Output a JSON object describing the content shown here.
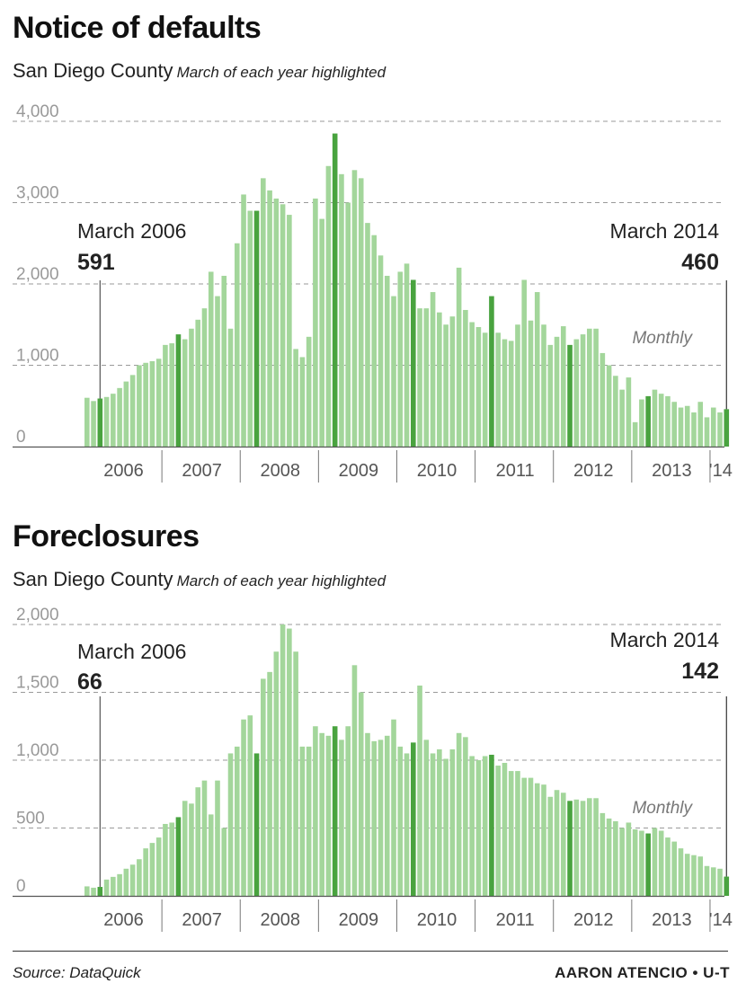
{
  "chart_data": [
    {
      "type": "bar",
      "title": "Notice of defaults",
      "subtitle": "San Diego County",
      "note": "March of each year highlighted",
      "series_label": "Monthly",
      "ylim": [
        0,
        4000
      ],
      "yticks": [
        0,
        1000,
        2000,
        3000,
        4000
      ],
      "ytick_labels": [
        "0",
        "1,000",
        "2,000",
        "3,000",
        "4,000"
      ],
      "year_labels": [
        "2006",
        "2007",
        "2008",
        "2009",
        "2010",
        "2011",
        "2012",
        "2013",
        "'14"
      ],
      "months": [
        "2006-01",
        "2006-02",
        "2006-03",
        "2006-04",
        "2006-05",
        "2006-06",
        "2006-07",
        "2006-08",
        "2006-09",
        "2006-10",
        "2006-11",
        "2006-12",
        "2007-01",
        "2007-02",
        "2007-03",
        "2007-04",
        "2007-05",
        "2007-06",
        "2007-07",
        "2007-08",
        "2007-09",
        "2007-10",
        "2007-11",
        "2007-12",
        "2008-01",
        "2008-02",
        "2008-03",
        "2008-04",
        "2008-05",
        "2008-06",
        "2008-07",
        "2008-08",
        "2008-09",
        "2008-10",
        "2008-11",
        "2008-12",
        "2009-01",
        "2009-02",
        "2009-03",
        "2009-04",
        "2009-05",
        "2009-06",
        "2009-07",
        "2009-08",
        "2009-09",
        "2009-10",
        "2009-11",
        "2009-12",
        "2010-01",
        "2010-02",
        "2010-03",
        "2010-04",
        "2010-05",
        "2010-06",
        "2010-07",
        "2010-08",
        "2010-09",
        "2010-10",
        "2010-11",
        "2010-12",
        "2011-01",
        "2011-02",
        "2011-03",
        "2011-04",
        "2011-05",
        "2011-06",
        "2011-07",
        "2011-08",
        "2011-09",
        "2011-10",
        "2011-11",
        "2011-12",
        "2012-01",
        "2012-02",
        "2012-03",
        "2012-04",
        "2012-05",
        "2012-06",
        "2012-07",
        "2012-08",
        "2012-09",
        "2012-10",
        "2012-11",
        "2012-12",
        "2013-01",
        "2013-02",
        "2013-03",
        "2013-04",
        "2013-05",
        "2013-06",
        "2013-07",
        "2013-08",
        "2013-09",
        "2013-10",
        "2013-11",
        "2013-12",
        "2014-01",
        "2014-02",
        "2014-03"
      ],
      "values": [
        600,
        560,
        591,
        610,
        650,
        720,
        800,
        880,
        1000,
        1030,
        1050,
        1080,
        1250,
        1270,
        1380,
        1320,
        1450,
        1560,
        1700,
        2150,
        1850,
        2100,
        1450,
        2500,
        3100,
        2900,
        2900,
        3300,
        3150,
        3050,
        2980,
        2850,
        1200,
        1100,
        1350,
        3050,
        2800,
        3450,
        3850,
        3350,
        3000,
        3400,
        3300,
        2750,
        2600,
        2350,
        2100,
        1850,
        2150,
        2250,
        2050,
        1700,
        1700,
        1900,
        1650,
        1500,
        1600,
        2200,
        1680,
        1530,
        1470,
        1400,
        1850,
        1400,
        1320,
        1300,
        1500,
        2050,
        1550,
        1900,
        1500,
        1250,
        1350,
        1480,
        1250,
        1320,
        1380,
        1450,
        1450,
        1150,
        1000,
        870,
        700,
        850,
        300,
        580,
        620,
        700,
        650,
        620,
        550,
        480,
        500,
        420,
        550,
        360,
        480,
        420,
        460
      ],
      "highlight_months": [
        "2006-03",
        "2007-03",
        "2008-03",
        "2009-03",
        "2010-03",
        "2011-03",
        "2012-03",
        "2013-03",
        "2014-03"
      ],
      "annotations": [
        {
          "label": "March 2006",
          "value": "591"
        },
        {
          "label": "March 2014",
          "value": "460"
        }
      ],
      "colors": {
        "bar": "#a3d69b",
        "highlight": "#49a33f",
        "grid": "#9a9a9a"
      }
    },
    {
      "type": "bar",
      "title": "Foreclosures",
      "subtitle": "San Diego County",
      "note": "March of each year highlighted",
      "series_label": "Monthly",
      "ylim": [
        0,
        2000
      ],
      "yticks": [
        0,
        500,
        1000,
        1500,
        2000
      ],
      "ytick_labels": [
        "0",
        "500",
        "1,000",
        "1,500",
        "2,000"
      ],
      "year_labels": [
        "2006",
        "2007",
        "2008",
        "2009",
        "2010",
        "2011",
        "2012",
        "2013",
        "'14"
      ],
      "months": [
        "2006-01",
        "2006-02",
        "2006-03",
        "2006-04",
        "2006-05",
        "2006-06",
        "2006-07",
        "2006-08",
        "2006-09",
        "2006-10",
        "2006-11",
        "2006-12",
        "2007-01",
        "2007-02",
        "2007-03",
        "2007-04",
        "2007-05",
        "2007-06",
        "2007-07",
        "2007-08",
        "2007-09",
        "2007-10",
        "2007-11",
        "2007-12",
        "2008-01",
        "2008-02",
        "2008-03",
        "2008-04",
        "2008-05",
        "2008-06",
        "2008-07",
        "2008-08",
        "2008-09",
        "2008-10",
        "2008-11",
        "2008-12",
        "2009-01",
        "2009-02",
        "2009-03",
        "2009-04",
        "2009-05",
        "2009-06",
        "2009-07",
        "2009-08",
        "2009-09",
        "2009-10",
        "2009-11",
        "2009-12",
        "2010-01",
        "2010-02",
        "2010-03",
        "2010-04",
        "2010-05",
        "2010-06",
        "2010-07",
        "2010-08",
        "2010-09",
        "2010-10",
        "2010-11",
        "2010-12",
        "2011-01",
        "2011-02",
        "2011-03",
        "2011-04",
        "2011-05",
        "2011-06",
        "2011-07",
        "2011-08",
        "2011-09",
        "2011-10",
        "2011-11",
        "2011-12",
        "2012-01",
        "2012-02",
        "2012-03",
        "2012-04",
        "2012-05",
        "2012-06",
        "2012-07",
        "2012-08",
        "2012-09",
        "2012-10",
        "2012-11",
        "2012-12",
        "2013-01",
        "2013-02",
        "2013-03",
        "2013-04",
        "2013-05",
        "2013-06",
        "2013-07",
        "2013-08",
        "2013-09",
        "2013-10",
        "2013-11",
        "2013-12",
        "2014-01",
        "2014-02",
        "2014-03"
      ],
      "values": [
        70,
        60,
        66,
        120,
        140,
        160,
        200,
        230,
        270,
        350,
        390,
        430,
        530,
        540,
        580,
        700,
        680,
        800,
        850,
        600,
        850,
        500,
        1050,
        1100,
        1300,
        1330,
        1050,
        1600,
        1650,
        1800,
        2000,
        1970,
        1800,
        1100,
        1100,
        1250,
        1200,
        1180,
        1250,
        1150,
        1250,
        1700,
        1500,
        1200,
        1140,
        1150,
        1180,
        1300,
        1100,
        1050,
        1130,
        1550,
        1150,
        1050,
        1080,
        1010,
        1080,
        1200,
        1170,
        1030,
        1000,
        1030,
        1040,
        960,
        980,
        920,
        920,
        870,
        870,
        830,
        820,
        730,
        780,
        760,
        700,
        710,
        700,
        720,
        720,
        610,
        570,
        550,
        500,
        540,
        490,
        480,
        460,
        500,
        480,
        430,
        400,
        350,
        310,
        300,
        290,
        220,
        210,
        200,
        142
      ],
      "highlight_months": [
        "2006-03",
        "2007-03",
        "2008-03",
        "2009-03",
        "2010-03",
        "2011-03",
        "2012-03",
        "2013-03",
        "2014-03"
      ],
      "annotations": [
        {
          "label": "March 2006",
          "value": "66"
        },
        {
          "label": "March 2014",
          "value": "142"
        }
      ],
      "colors": {
        "bar": "#a3d69b",
        "highlight": "#49a33f",
        "grid": "#9a9a9a"
      }
    }
  ],
  "footer": {
    "source": "Source: DataQuick",
    "credit": "AARON ATENCIO • U-T"
  }
}
